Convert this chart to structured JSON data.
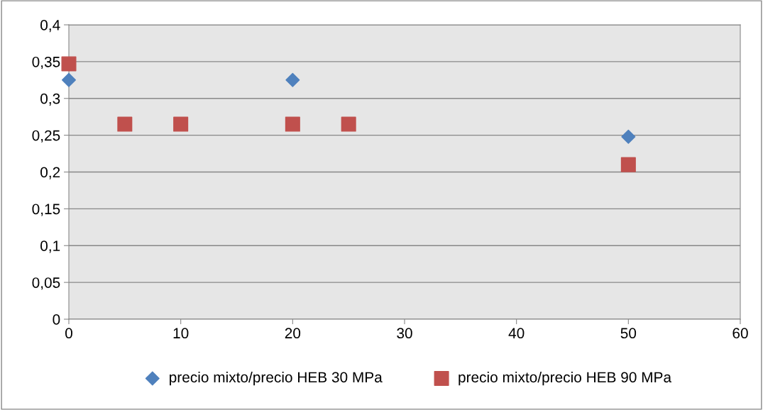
{
  "chart_data": {
    "type": "scatter",
    "series": [
      {
        "name": "precio mixto/precio HEB 30 MPa",
        "color": "#4f81bd",
        "marker": "diamond",
        "x": [
          0,
          20,
          50
        ],
        "values": [
          0.325,
          0.325,
          0.248
        ]
      },
      {
        "name": "precio mixto/precio HEB 90 MPa",
        "color": "#c0504d",
        "marker": "square",
        "x": [
          0,
          5,
          10,
          20,
          25,
          50
        ],
        "values": [
          0.347,
          0.265,
          0.265,
          0.265,
          0.265,
          0.21
        ]
      }
    ],
    "xlim": [
      0,
      60
    ],
    "xticks": [
      0,
      10,
      20,
      30,
      40,
      50,
      60
    ],
    "ylim": [
      0,
      0.4
    ],
    "yticks": [
      0,
      {
        "value": 0.05,
        "label": "0,05"
      },
      {
        "value": 0.1,
        "label": "0,1"
      },
      {
        "value": 0.15,
        "label": "0,15"
      },
      {
        "value": 0.2,
        "label": "0,2"
      },
      {
        "value": 0.25,
        "label": "0,25"
      },
      {
        "value": 0.3,
        "label": "0,3"
      },
      {
        "value": 0.35,
        "label": "0,35"
      },
      {
        "value": 0.4,
        "label": "0,4"
      }
    ],
    "grid": "y",
    "legend": "bottom"
  }
}
